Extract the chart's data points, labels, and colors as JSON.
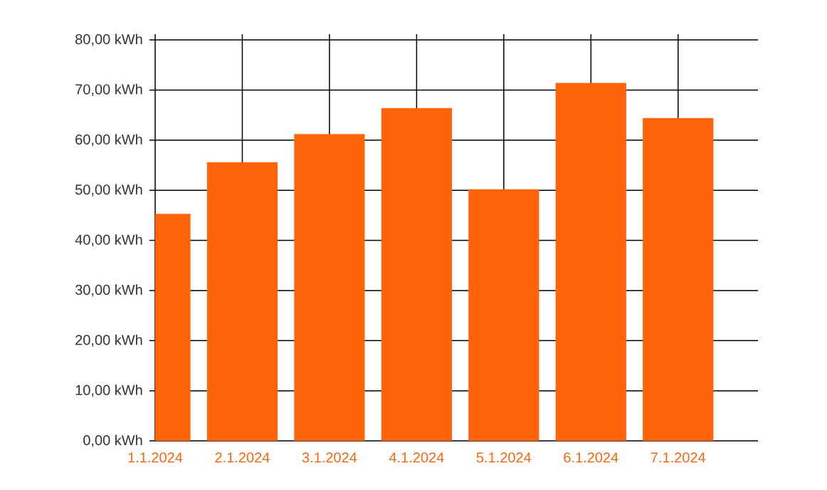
{
  "chart_data": {
    "type": "bar",
    "x": [
      "2024-01-01",
      "2024-01-02",
      "2024-01-03",
      "2024-01-04",
      "2024-01-05",
      "2024-01-06",
      "2024-01-07"
    ],
    "values": [
      45.3,
      55.6,
      61.2,
      66.4,
      50.2,
      71.4,
      64.4
    ],
    "color": "#ff640a",
    "xlim": [
      "2024-01-01",
      "2024-01-07T22:00"
    ],
    "xticks": [
      {
        "value": "2024-01-01",
        "label": "1.1.2024"
      },
      {
        "value": "2024-01-02",
        "label": "2.1.2024"
      },
      {
        "value": "2024-01-03",
        "label": "3.1.2024"
      },
      {
        "value": "2024-01-04",
        "label": "4.1.2024"
      },
      {
        "value": "2024-01-05",
        "label": "5.1.2024"
      },
      {
        "value": "2024-01-06",
        "label": "6.1.2024"
      },
      {
        "value": "2024-01-07",
        "label": "7.1.2024"
      }
    ],
    "ylim": [
      0,
      80
    ],
    "yticks": [
      {
        "value": 0,
        "label": "0,00 kWh"
      },
      {
        "value": 10,
        "label": "10,00 kWh"
      },
      {
        "value": 20,
        "label": "20,00 kWh"
      },
      {
        "value": 30,
        "label": "30,00 kWh"
      },
      {
        "value": 40,
        "label": "40,00 kWh"
      },
      {
        "value": 50,
        "label": "50,00 kWh"
      },
      {
        "value": 60,
        "label": "60,00 kWh"
      },
      {
        "value": 70,
        "label": "70,00 kWh"
      },
      {
        "value": 80,
        "label": "80,00 kWh"
      }
    ],
    "grid": true
  }
}
